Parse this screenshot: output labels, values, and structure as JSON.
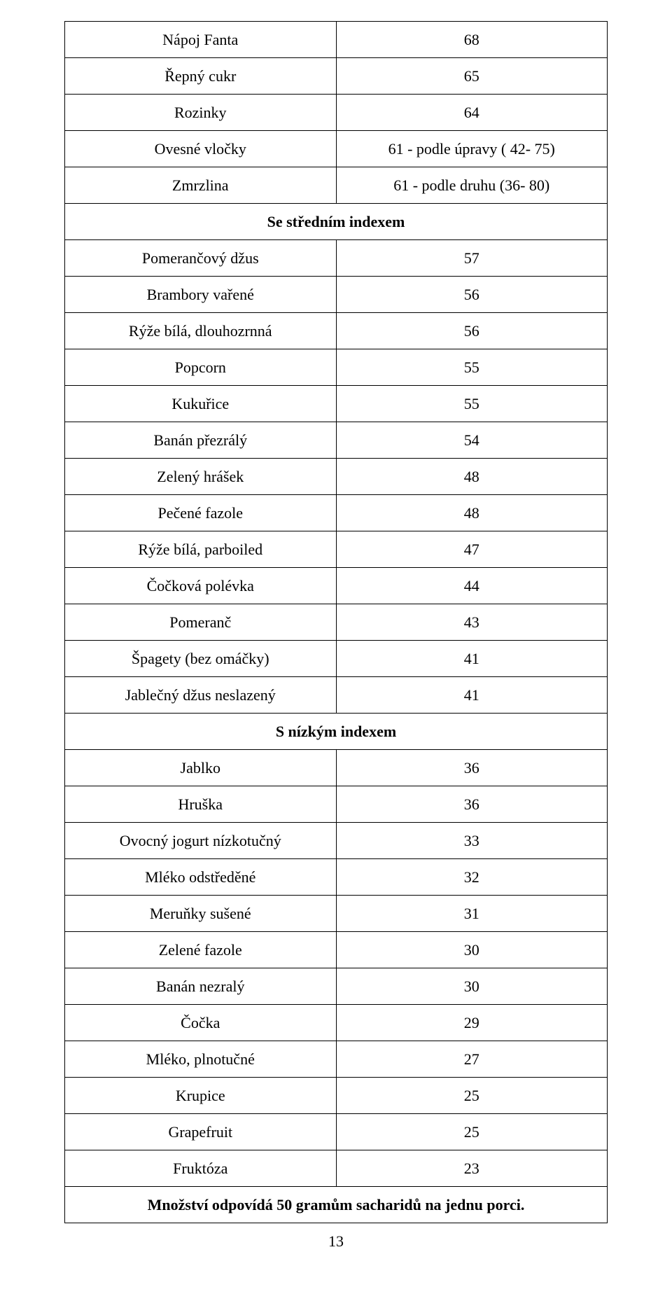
{
  "table": {
    "rows": [
      {
        "left": "Nápoj Fanta",
        "right": "68"
      },
      {
        "left": "Řepný cukr",
        "right": "65"
      },
      {
        "left": "Rozinky",
        "right": "64"
      },
      {
        "left": "Ovesné vločky",
        "right": "61 - podle úpravy ( 42- 75)"
      },
      {
        "left": "Zmrzlina",
        "right": "61 - podle druhu (36- 80)"
      },
      {
        "section": "Se středním indexem"
      },
      {
        "left": "Pomerančový džus",
        "right": "57"
      },
      {
        "left": "Brambory vařené",
        "right": "56"
      },
      {
        "left": "Rýže bílá, dlouhozrnná",
        "right": "56"
      },
      {
        "left": "Popcorn",
        "right": "55"
      },
      {
        "left": "Kukuřice",
        "right": "55"
      },
      {
        "left": "Banán přezrálý",
        "right": "54"
      },
      {
        "left": "Zelený hrášek",
        "right": "48"
      },
      {
        "left": "Pečené fazole",
        "right": "48"
      },
      {
        "left": "Rýže bílá, parboiled",
        "right": "47"
      },
      {
        "left": "Čočková polévka",
        "right": "44"
      },
      {
        "left": "Pomeranč",
        "right": "43"
      },
      {
        "left": "Špagety (bez omáčky)",
        "right": "41"
      },
      {
        "left": "Jablečný džus neslazený",
        "right": "41"
      },
      {
        "section": "S nízkým indexem"
      },
      {
        "left": "Jablko",
        "right": "36"
      },
      {
        "left": "Hruška",
        "right": "36"
      },
      {
        "left": "Ovocný jogurt nízkotučný",
        "right": "33"
      },
      {
        "left": "Mléko odstředěné",
        "right": "32"
      },
      {
        "left": "Meruňky sušené",
        "right": "31"
      },
      {
        "left": "Zelené fazole",
        "right": "30"
      },
      {
        "left": "Banán nezralý",
        "right": "30"
      },
      {
        "left": "Čočka",
        "right": "29"
      },
      {
        "left": "Mléko, plnotučné",
        "right": "27"
      },
      {
        "left": "Krupice",
        "right": "25"
      },
      {
        "left": "Grapefruit",
        "right": "25"
      },
      {
        "left": "Fruktóza",
        "right": "23"
      },
      {
        "footer": "Množství odpovídá 50 gramům sacharidů na jednu porci."
      }
    ],
    "col_widths": [
      "50%",
      "50%"
    ],
    "border_color": "#000000",
    "font_size": 22,
    "text_color": "#000000",
    "background_color": "#ffffff"
  },
  "page_number": "13"
}
